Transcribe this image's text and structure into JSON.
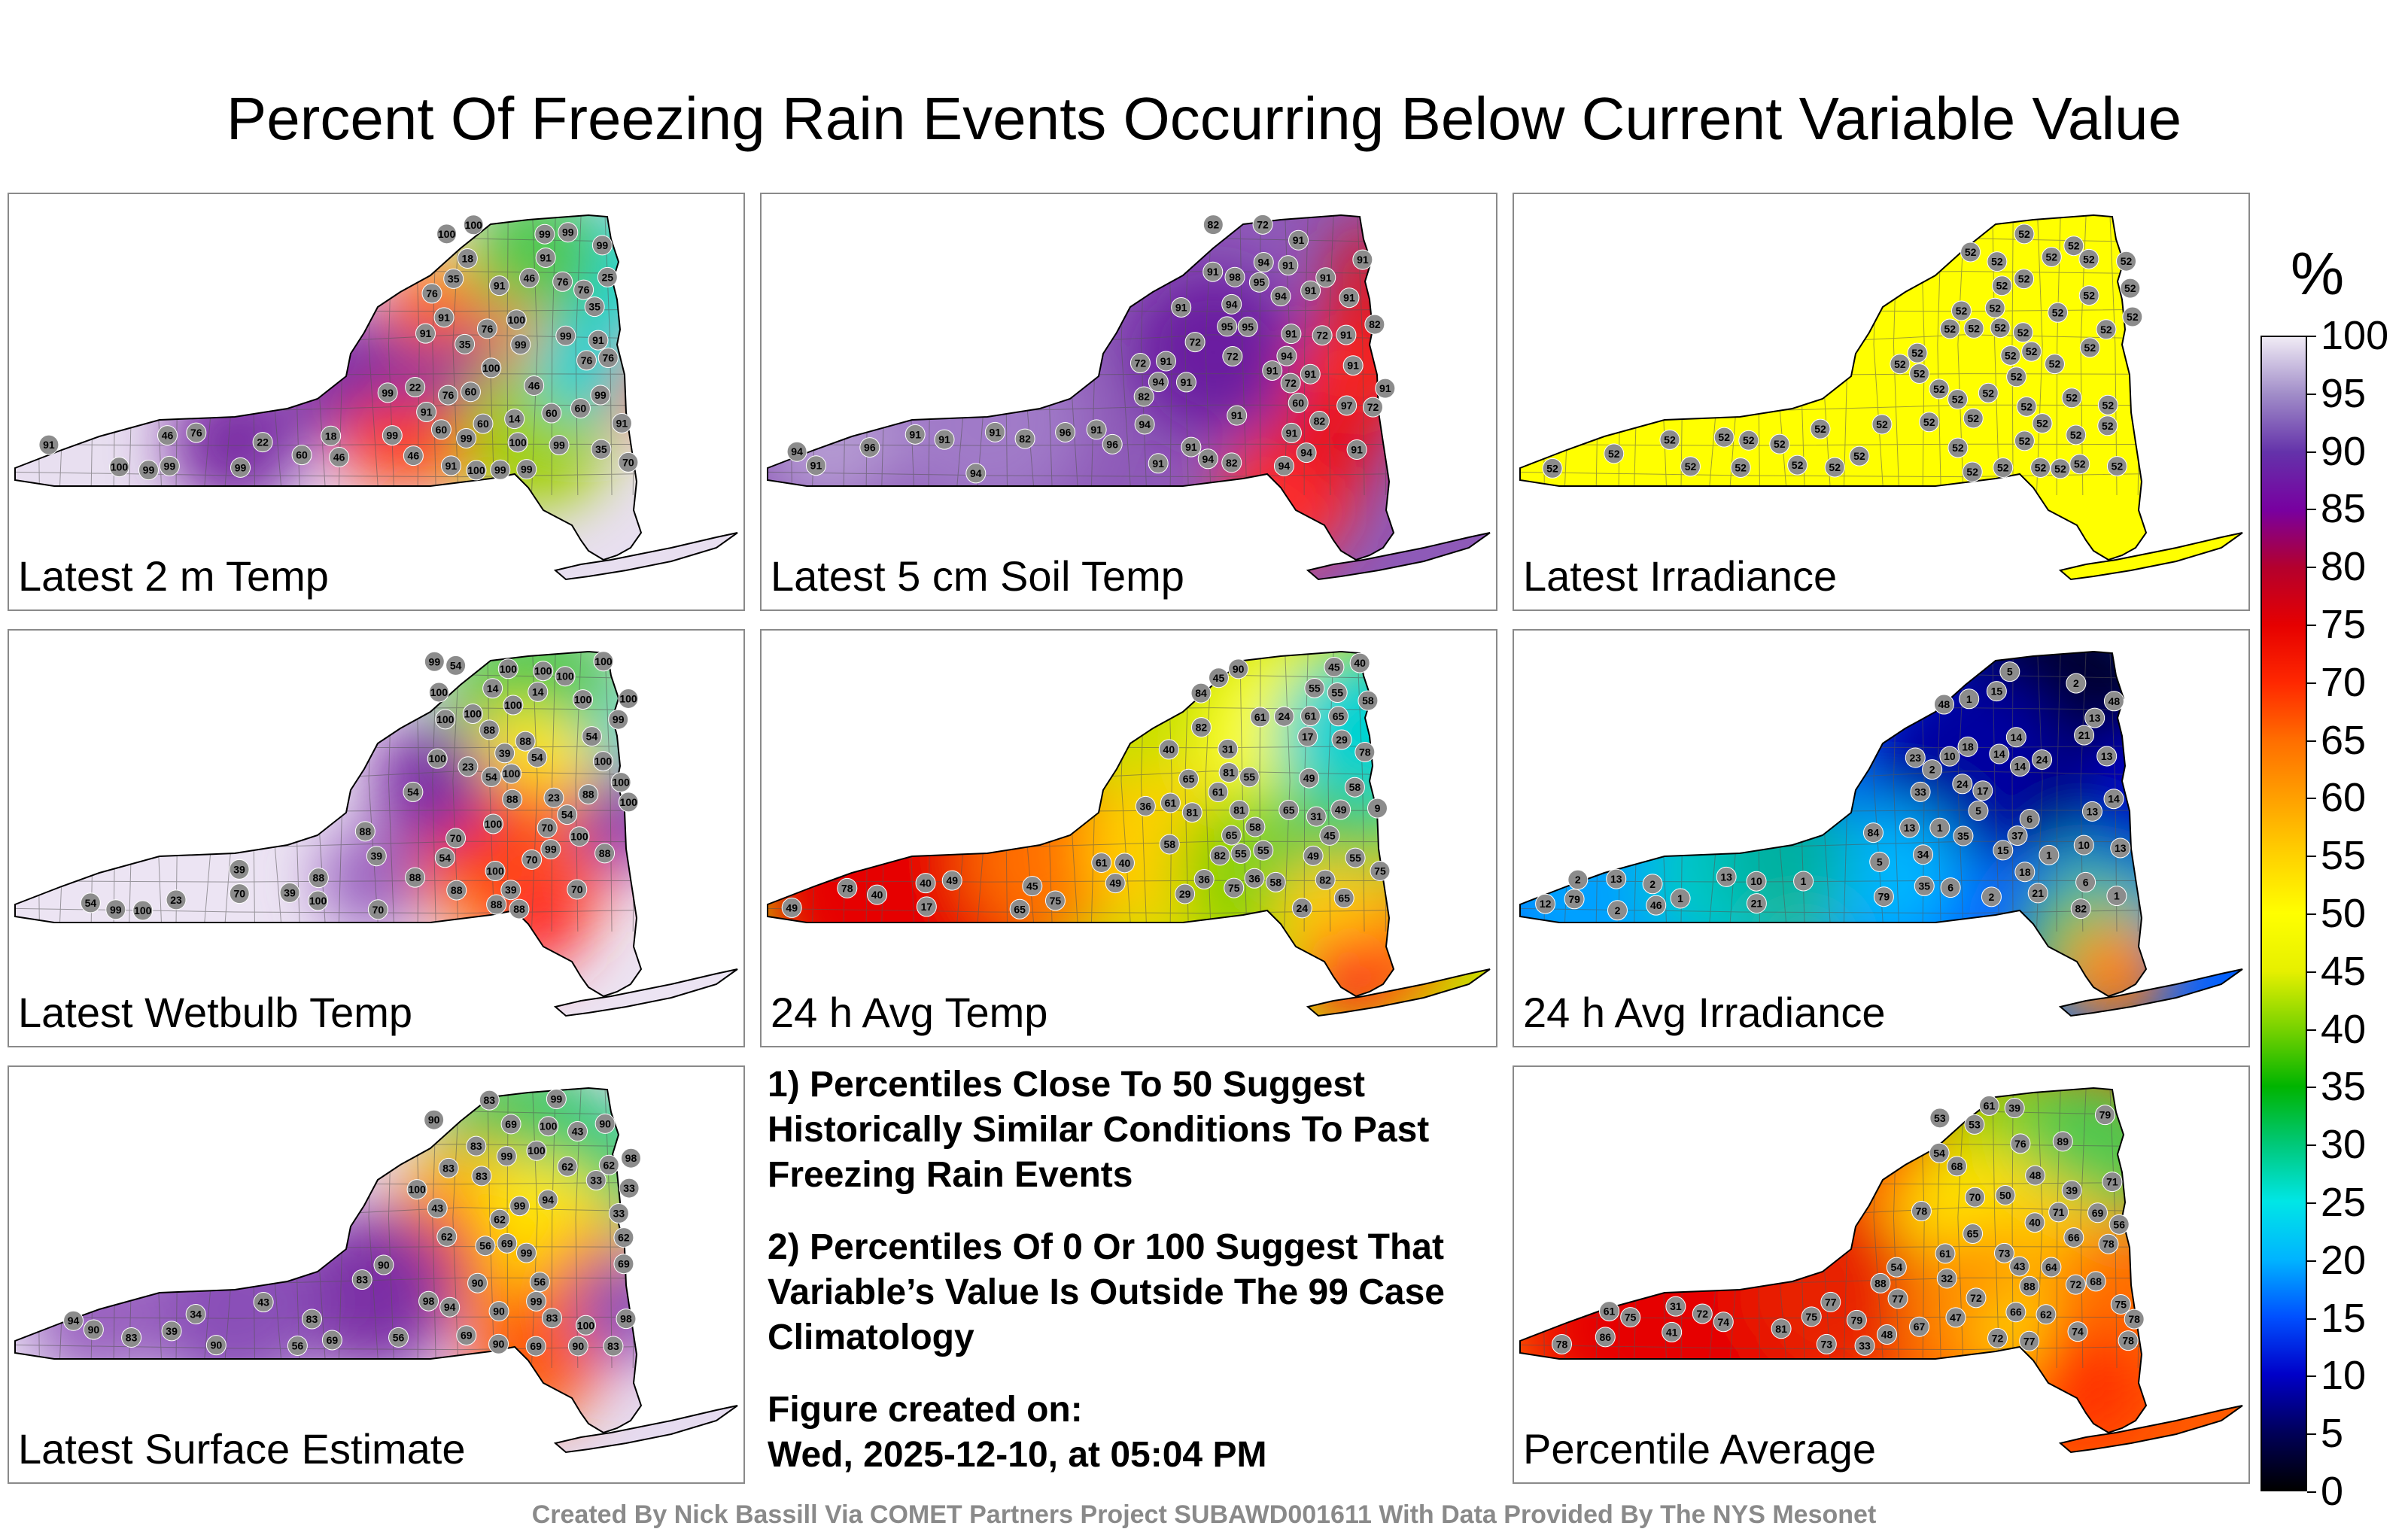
{
  "title": "Percent Of Freezing Rain Events Occurring Below Current Variable Value",
  "panels": [
    {
      "label": "Latest 2 m Temp",
      "theme": "temp2m",
      "stations": [
        "22",
        "35",
        "46",
        "18",
        "60",
        "60",
        "76",
        "91",
        "35",
        "14",
        "25",
        "18",
        "99",
        "99",
        "76",
        "46",
        "99",
        "35",
        "22",
        "60",
        "99",
        "99",
        "100",
        "99",
        "91",
        "100",
        "76",
        "70",
        "99",
        "100",
        "99",
        "91",
        "60",
        "46",
        "60",
        "91",
        "99",
        "91",
        "76",
        "60",
        "46",
        "99",
        "76",
        "100",
        "76",
        "91",
        "99",
        "76",
        "91",
        "99",
        "35",
        "46",
        "76",
        "91",
        "91",
        "99",
        "99",
        "99",
        "100",
        "100",
        "100"
      ]
    },
    {
      "label": "Latest 5 cm Soil Temp",
      "theme": "soil",
      "stations": [
        "91",
        "94",
        "72",
        "82",
        "94",
        "97",
        "82",
        "91",
        "94",
        "94",
        "82",
        "91",
        "91",
        "98",
        "72",
        "60",
        "91",
        "96",
        "91",
        "91",
        "91",
        "72",
        "94",
        "91",
        "95",
        "91",
        "91",
        "94",
        "82",
        "91",
        "91",
        "91",
        "91",
        "96",
        "94",
        "94",
        "91",
        "94",
        "91",
        "72",
        "82",
        "91",
        "91",
        "82",
        "96",
        "72",
        "72",
        "95",
        "94",
        "91",
        "91",
        "91",
        "91",
        "91",
        "91",
        "91",
        "72",
        "94",
        "95"
      ]
    },
    {
      "label": "Latest Irradiance",
      "theme": "flat",
      "stations": [
        "52",
        "52",
        "52",
        "52",
        "52",
        "52",
        "52",
        "52",
        "52",
        "52",
        "52",
        "52",
        "52",
        "52",
        "52",
        "52",
        "52",
        "52",
        "52",
        "52",
        "52",
        "52",
        "52",
        "52",
        "52",
        "52",
        "52",
        "52",
        "52",
        "52",
        "52",
        "52",
        "52",
        "52",
        "52",
        "52",
        "52",
        "52",
        "52",
        "52",
        "52",
        "52",
        "52",
        "52",
        "52",
        "52",
        "52",
        "52",
        "52",
        "52",
        "52",
        "52",
        "52",
        "52",
        "52",
        "52",
        "52",
        "52",
        "52",
        "52"
      ]
    },
    {
      "label": "Latest Wetbulb Temp",
      "theme": "wetbulb",
      "stations": [
        "23",
        "39",
        "14",
        "54",
        "70",
        "23",
        "39",
        "39",
        "23",
        "54",
        "14",
        "88",
        "100",
        "54",
        "100",
        "100",
        "100",
        "88",
        "70",
        "88",
        "54",
        "100",
        "100",
        "100",
        "88",
        "70",
        "39",
        "100",
        "100",
        "100",
        "99",
        "88",
        "54",
        "39",
        "54",
        "100",
        "99",
        "88",
        "70",
        "88",
        "54",
        "70",
        "88",
        "99",
        "100",
        "100",
        "100",
        "100",
        "88",
        "70",
        "99",
        "100",
        "100",
        "100",
        "100",
        "88",
        "100",
        "54",
        "88"
      ]
    },
    {
      "label": "24 h Avg Temp",
      "theme": "avgtemp",
      "stations": [
        "49",
        "36",
        "40",
        "58",
        "49",
        "9",
        "55",
        "29",
        "31",
        "45",
        "65",
        "17",
        "24",
        "58",
        "31",
        "40",
        "40",
        "36",
        "17",
        "24",
        "81",
        "81",
        "65",
        "40",
        "55",
        "36",
        "45",
        "82",
        "81",
        "75",
        "65",
        "58",
        "45",
        "58",
        "82",
        "78",
        "65",
        "61",
        "49",
        "61",
        "45",
        "55",
        "65",
        "82",
        "75",
        "61",
        "55",
        "49",
        "40",
        "29",
        "55",
        "75",
        "78",
        "49",
        "61",
        "49",
        "55",
        "58",
        "61",
        "65",
        "84",
        "90"
      ]
    },
    {
      "label": "24 h Avg Irradiance",
      "theme": "irr",
      "stations": [
        "5",
        "17",
        "14",
        "12",
        "2",
        "1",
        "2",
        "2",
        "13",
        "1",
        "5",
        "13",
        "6",
        "1",
        "1",
        "1",
        "21",
        "13",
        "2",
        "1",
        "5",
        "10",
        "10",
        "24",
        "18",
        "14",
        "21",
        "13",
        "6",
        "2",
        "13",
        "21",
        "35",
        "33",
        "48",
        "13",
        "6",
        "15",
        "10",
        "18",
        "14",
        "23",
        "13",
        "34",
        "37",
        "46",
        "15",
        "2",
        "24",
        "14",
        "35",
        "48",
        "79",
        "82",
        "79",
        "84"
      ]
    },
    {
      "label": "Latest Surface Estimate",
      "theme": "surface",
      "stations": [
        "39",
        "43",
        "56",
        "33",
        "98",
        "69",
        "43",
        "33",
        "83",
        "62",
        "43",
        "56",
        "90",
        "69",
        "34",
        "33",
        "99",
        "56",
        "62",
        "90",
        "90",
        "90",
        "94",
        "99",
        "98",
        "69",
        "62",
        "83",
        "83",
        "90",
        "83",
        "83",
        "94",
        "90",
        "99",
        "99",
        "83",
        "83",
        "69",
        "56",
        "62",
        "90",
        "94",
        "90",
        "69",
        "83",
        "62",
        "69",
        "83",
        "90",
        "98",
        "99",
        "100",
        "100",
        "100",
        "100"
      ]
    },
    {
      "label": "Percentile Average",
      "theme": "average",
      "stations": [
        "39",
        "47",
        "40",
        "53",
        "31",
        "54",
        "43",
        "74",
        "61",
        "67",
        "72",
        "33",
        "41",
        "32",
        "53",
        "76",
        "77",
        "78",
        "68",
        "73",
        "48",
        "39",
        "66",
        "75",
        "78",
        "79",
        "78",
        "89",
        "79",
        "72",
        "69",
        "68",
        "56",
        "54",
        "61",
        "72",
        "77",
        "71",
        "70",
        "74",
        "78",
        "72",
        "66",
        "75",
        "62",
        "65",
        "75",
        "48",
        "73",
        "50",
        "64",
        "71",
        "61",
        "81",
        "78",
        "77",
        "86",
        "88",
        "88"
      ]
    }
  ],
  "notes": [
    "1) Percentiles Close To 50 Suggest Historically Similar Conditions To Past Freezing Rain Events",
    "2) Percentiles Of 0 Or 100 Suggest That Variable’s Value Is Outside The 99 Case Climatology",
    "Figure created on:",
    "Wed, 2025-12-10, at 05:04 PM"
  ],
  "colorbar": {
    "unit": "%",
    "ticks": [
      "100",
      "95",
      "90",
      "85",
      "80",
      "75",
      "70",
      "65",
      "60",
      "55",
      "50",
      "45",
      "40",
      "35",
      "30",
      "25",
      "20",
      "15",
      "10",
      "5",
      "0"
    ],
    "stops": [
      "#000000",
      "#00005a",
      "#0000c8",
      "#0050ff",
      "#00b4ff",
      "#00e6e6",
      "#00c878",
      "#00b400",
      "#78d200",
      "#e6f000",
      "#ffff00",
      "#ffd200",
      "#ffa000",
      "#ff6e00",
      "#ff2800",
      "#e60000",
      "#b4002d",
      "#7800a0",
      "#6432aa",
      "#a08cc8",
      "#f0ebf5"
    ]
  },
  "credit": "Created By Nick Bassill Via COMET Partners Project SUBAWD001611 With Data Provided By The NYS Mesonet"
}
